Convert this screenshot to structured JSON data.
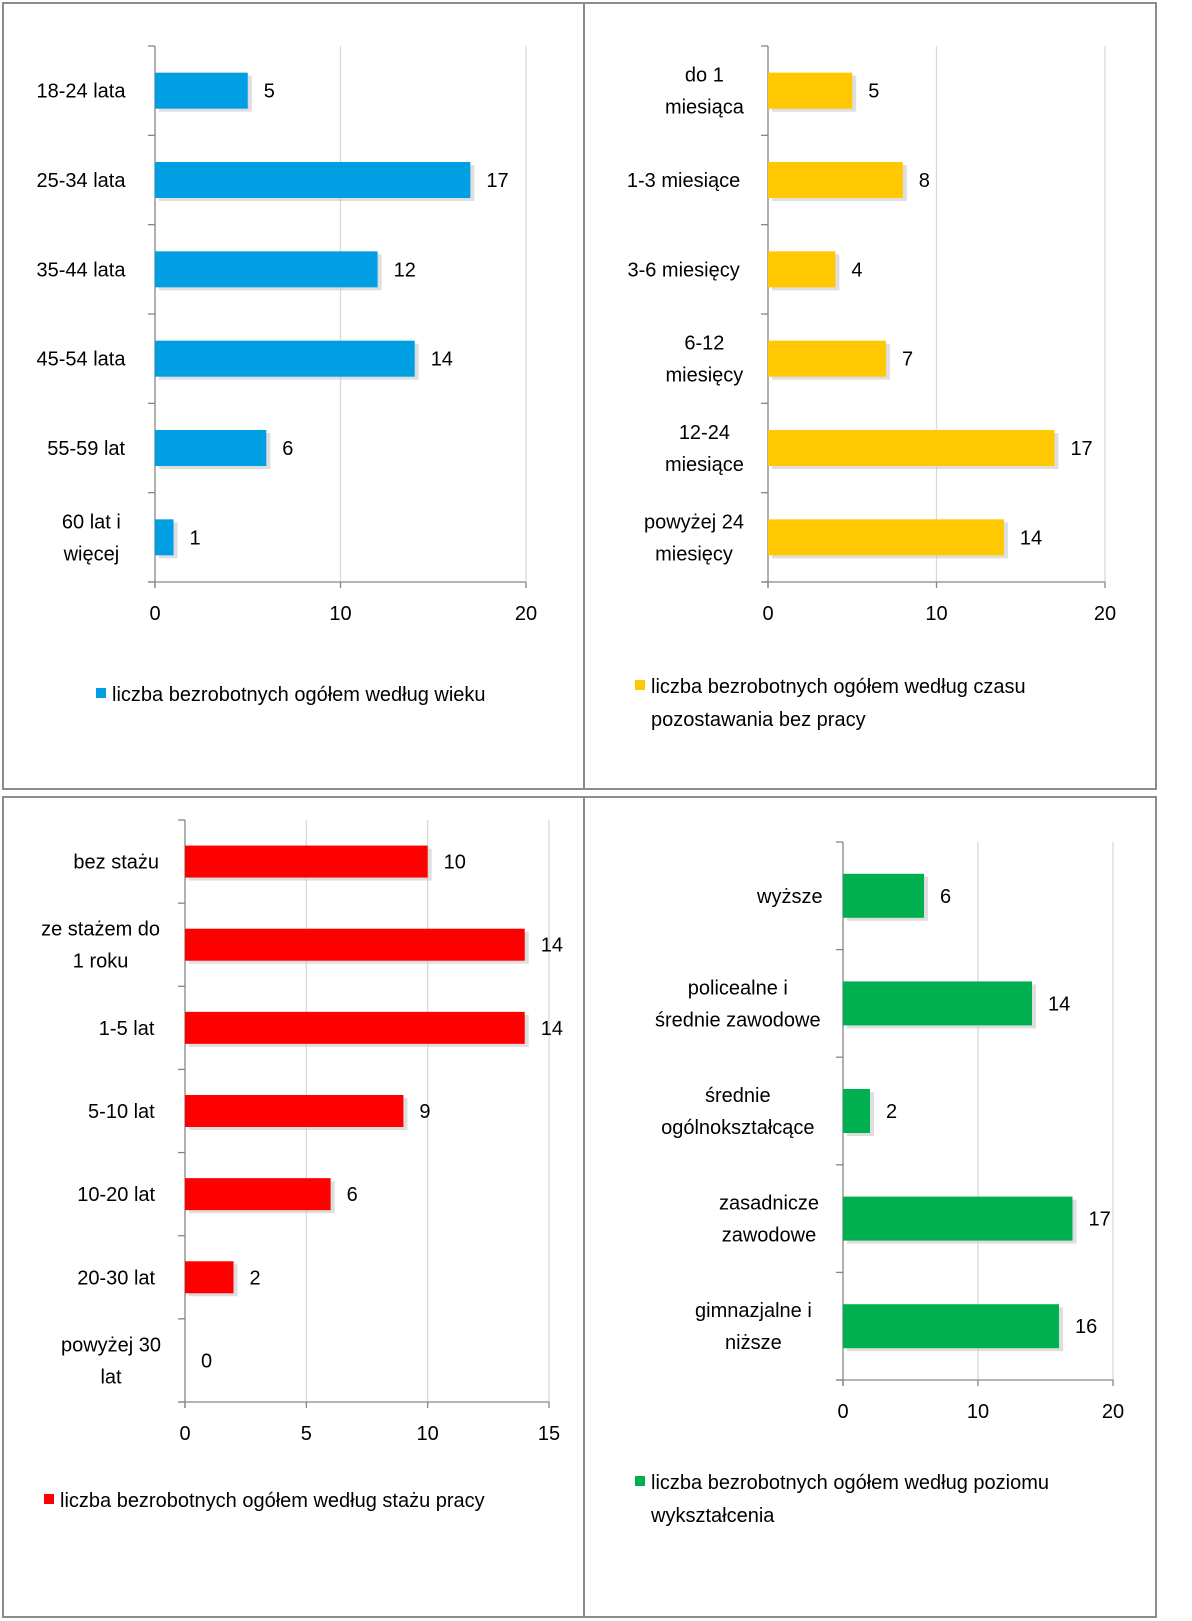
{
  "chart_data": [
    {
      "type": "bar",
      "orientation": "horizontal",
      "categories": [
        "18-24 lata",
        "25-34 lata",
        "35-44 lata",
        "45-54 lata",
        "55-59 lat",
        "60 lat i więcej"
      ],
      "series": [
        {
          "name": "liczba bezrobotnych ogółem według wieku",
          "values": [
            5,
            17,
            12,
            14,
            6,
            1
          ]
        }
      ],
      "xlim": [
        0,
        20
      ],
      "xticks": [
        0,
        10,
        20
      ],
      "grid": true,
      "legend": "bottom",
      "color": "#009fe3"
    },
    {
      "type": "bar",
      "orientation": "horizontal",
      "categories": [
        "do 1 miesiąca",
        "1-3 miesiące",
        "3-6 miesięcy",
        "6-12 miesięcy",
        "12-24 miesiące",
        "powyżej 24 miesięcy"
      ],
      "series": [
        {
          "name": "liczba bezrobotnych ogółem według czasu pozostawania bez pracy",
          "values": [
            5,
            8,
            4,
            7,
            17,
            14
          ]
        }
      ],
      "xlim": [
        0,
        20
      ],
      "xticks": [
        0,
        10,
        20
      ],
      "grid": true,
      "legend": "bottom",
      "color": "#ffc800"
    },
    {
      "type": "bar",
      "orientation": "horizontal",
      "categories": [
        "bez stażu",
        "ze stażem do 1 roku",
        "1-5 lat",
        "5-10 lat",
        "10-20 lat",
        "20-30 lat",
        "powyżej 30 lat"
      ],
      "series": [
        {
          "name": "liczba bezrobotnych ogółem według stażu pracy",
          "values": [
            10,
            14,
            14,
            9,
            6,
            2,
            0
          ]
        }
      ],
      "xlim": [
        0,
        15
      ],
      "xticks": [
        0,
        5,
        10,
        15
      ],
      "grid": true,
      "legend": "bottom",
      "color": "#ff0000"
    },
    {
      "type": "bar",
      "orientation": "horizontal",
      "categories": [
        "wyższe",
        "policealne i średnie zawodowe",
        "średnie ogólnokształcące",
        "zasadnicze zawodowe",
        "gimnazjalne i niższe"
      ],
      "series": [
        {
          "name": "liczba bezrobotnych ogółem według poziomu wykształcenia",
          "values": [
            6,
            14,
            2,
            17,
            16
          ]
        }
      ],
      "xlim": [
        0,
        20
      ],
      "xticks": [
        0,
        10,
        20
      ],
      "grid": true,
      "legend": "bottom",
      "color": "#00b050"
    }
  ]
}
